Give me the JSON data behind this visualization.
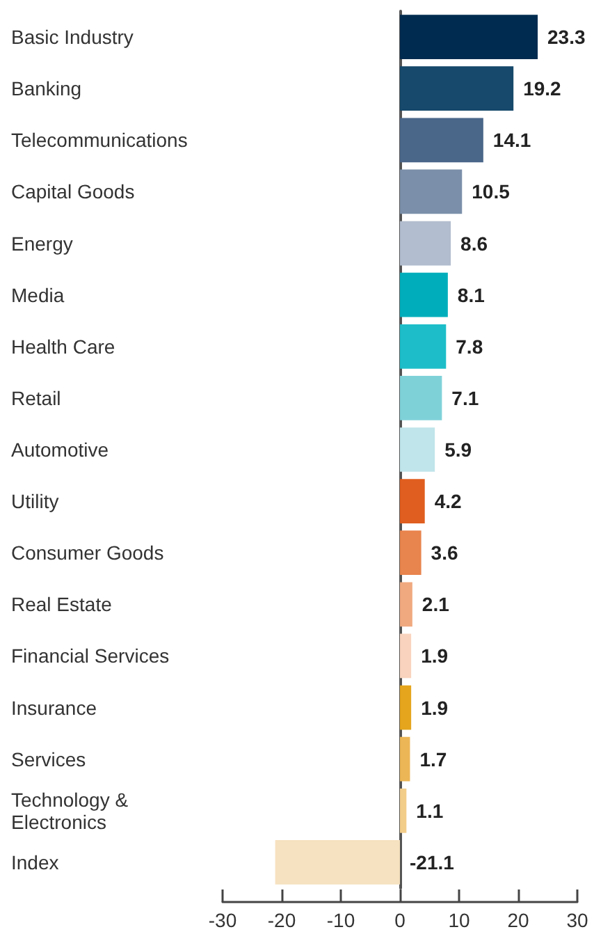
{
  "chart_data": {
    "type": "bar",
    "orientation": "horizontal",
    "categories": [
      "Basic Industry",
      "Banking",
      "Telecommunications",
      "Capital Goods",
      "Energy",
      "Media",
      "Health Care",
      "Retail",
      "Automotive",
      "Utility",
      "Consumer Goods",
      "Real Estate",
      "Financial Services",
      "Insurance",
      "Services",
      "Technology & Electronics",
      "Index"
    ],
    "values": [
      23.3,
      19.2,
      14.1,
      10.5,
      8.6,
      8.1,
      7.8,
      7.1,
      5.9,
      4.2,
      3.6,
      2.1,
      1.9,
      1.9,
      1.7,
      1.1,
      -21.1
    ],
    "colors": [
      "#002b50",
      "#16496b",
      "#4a678a",
      "#7b8faa",
      "#b2bdcf",
      "#00aebb",
      "#1dbec9",
      "#7fd1d8",
      "#c0e5ea",
      "#e05e1f",
      "#e8844d",
      "#f0a97f",
      "#f9d3bd",
      "#e5a51c",
      "#ecb656",
      "#f2cd8a",
      "#f6e1c0"
    ],
    "data_labels": true,
    "xlim": [
      -30,
      30
    ],
    "xticks": [
      -30,
      -20,
      -10,
      0,
      10,
      20,
      30
    ]
  }
}
